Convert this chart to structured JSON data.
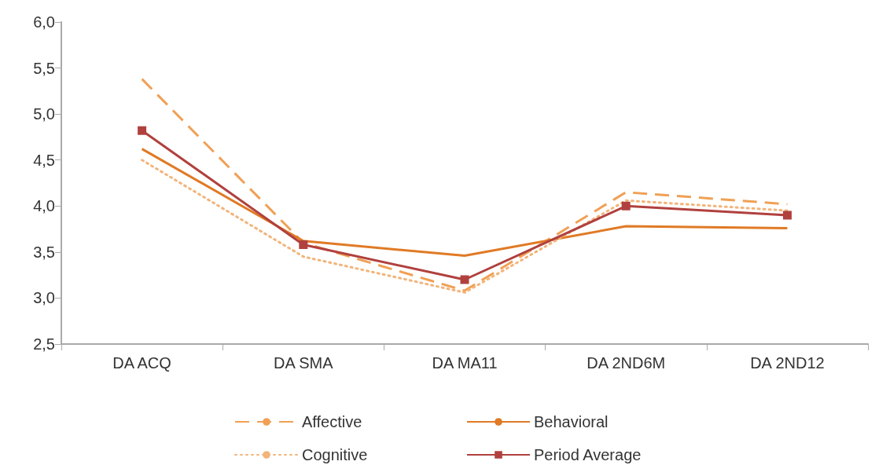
{
  "chart_data": {
    "type": "line",
    "categories": [
      "DA ACQ",
      "DA SMA",
      "DA MA11",
      "DA 2ND6M",
      "DA 2ND12"
    ],
    "series": [
      {
        "name": "Affective",
        "color": "#f0a055",
        "line_style": "dashed",
        "marker": "none",
        "values": [
          5.38,
          3.6,
          3.08,
          4.15,
          4.02
        ]
      },
      {
        "name": "Behavioral",
        "color": "#e07a25",
        "line_style": "solid",
        "marker": "none",
        "values": [
          4.62,
          3.62,
          3.46,
          3.78,
          3.76
        ]
      },
      {
        "name": "Cognitive",
        "color": "#f2b47a",
        "line_style": "dotted",
        "marker": "none",
        "values": [
          4.5,
          3.45,
          3.06,
          4.06,
          3.95
        ]
      },
      {
        "name": "Period Average",
        "color": "#b0413e",
        "line_style": "solid",
        "marker": "square",
        "values": [
          4.82,
          3.58,
          3.2,
          4.0,
          3.9
        ]
      }
    ],
    "ylim": [
      2.5,
      6
    ],
    "yticks": [
      {
        "value": 2.5,
        "label": "2,5"
      },
      {
        "value": 3,
        "label": "3,0"
      },
      {
        "value": 3.5,
        "label": "3,5"
      },
      {
        "value": 4,
        "label": "4,0"
      },
      {
        "value": 4.5,
        "label": "4,5"
      },
      {
        "value": 5,
        "label": "5,0"
      },
      {
        "value": 5.5,
        "label": "5,5"
      },
      {
        "value": 6,
        "label": "6,0"
      }
    ],
    "grid": false,
    "legend": "bottom"
  }
}
